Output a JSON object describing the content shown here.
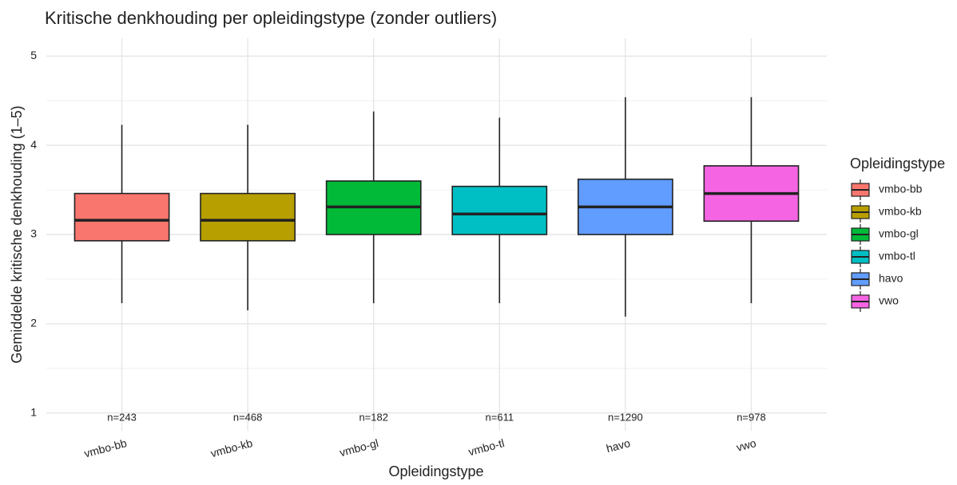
{
  "chart_data": {
    "type": "boxplot",
    "title": "Kritische denkhouding per opleidingstype (zonder outliers)",
    "x_label": "Opleidingstype",
    "y_label": "Gemiddelde kritische denkhouding (1–5)",
    "legend_title": "Opleidingstype",
    "categories": [
      "vmbo-bb",
      "vmbo-kb",
      "vmbo-gl",
      "vmbo-tl",
      "havo",
      "vwo"
    ],
    "colors": [
      "#F8766D",
      "#B79F00",
      "#00BA38",
      "#00BFC4",
      "#619CFF",
      "#F564E3"
    ],
    "boxes": [
      {
        "low": 2.23,
        "q1": 2.93,
        "median": 3.16,
        "q3": 3.46,
        "high": 4.23
      },
      {
        "low": 2.15,
        "q1": 2.93,
        "median": 3.16,
        "q3": 3.46,
        "high": 4.23
      },
      {
        "low": 2.23,
        "q1": 3.0,
        "median": 3.31,
        "q3": 3.6,
        "high": 4.38
      },
      {
        "low": 2.23,
        "q1": 3.0,
        "median": 3.23,
        "q3": 3.54,
        "high": 4.31
      },
      {
        "low": 2.08,
        "q1": 3.0,
        "median": 3.31,
        "q3": 3.62,
        "high": 4.54
      },
      {
        "low": 2.23,
        "q1": 3.15,
        "median": 3.46,
        "q3": 3.77,
        "high": 4.54
      }
    ],
    "n_labels": [
      "n=243",
      "n=468",
      "n=182",
      "n=611",
      "n=1290",
      "n=978"
    ],
    "ylim": [
      0.8,
      5.2
    ],
    "yticks": [
      1,
      2,
      3,
      4,
      5
    ],
    "y_minor_ticks": [
      1.5,
      2.5,
      3.5,
      4.5
    ],
    "grid": true
  }
}
